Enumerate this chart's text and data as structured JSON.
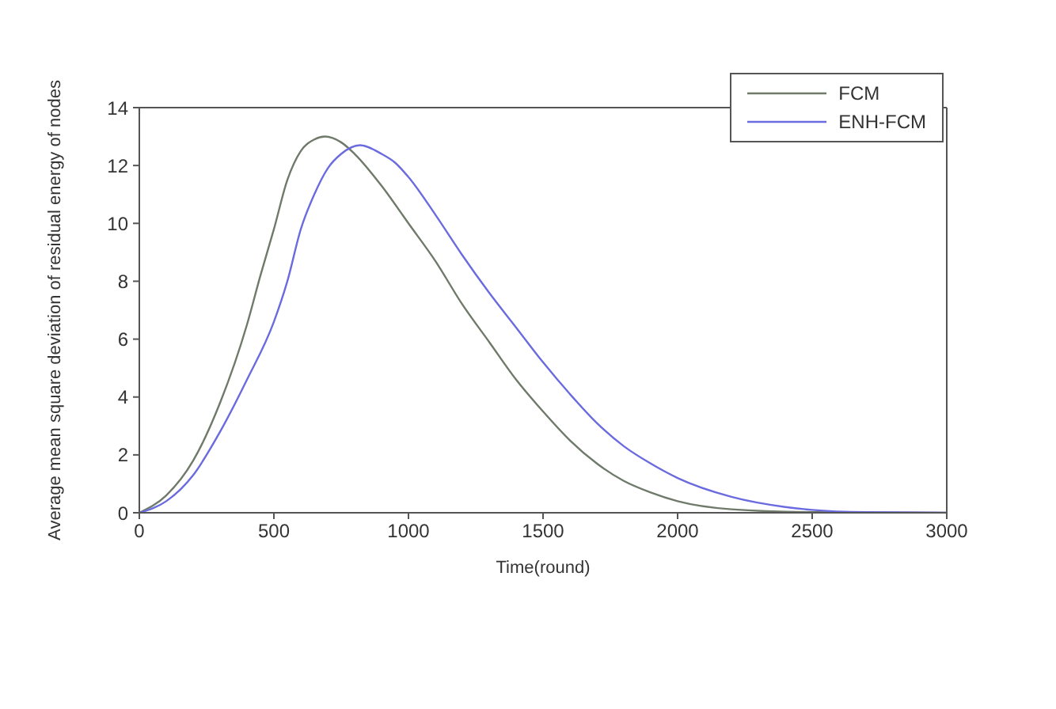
{
  "chart_data": {
    "type": "line",
    "xlabel": "Time(round)",
    "ylabel": "Average mean square deviation of residual energy of nodes",
    "xlim": [
      0,
      3000
    ],
    "xticks": [
      0,
      500,
      1000,
      1500,
      2000,
      2500,
      3000
    ],
    "ylim": [
      0,
      14
    ],
    "yticks": [
      0,
      2,
      4,
      6,
      8,
      10,
      12,
      14
    ],
    "grid": false,
    "legend": "top right",
    "marker": "none",
    "line_style": "solid",
    "series": [
      {
        "name": "FCM",
        "color": "#6f7a6a",
        "x": [
          0,
          100,
          200,
          300,
          400,
          450,
          500,
          550,
          600,
          650,
          690,
          750,
          800,
          900,
          1000,
          1100,
          1200,
          1300,
          1400,
          1500,
          1600,
          1700,
          1800,
          1900,
          2000,
          2200,
          2500,
          3000
        ],
        "values": [
          0,
          0.6,
          1.8,
          3.8,
          6.5,
          8.2,
          9.8,
          11.5,
          12.5,
          12.9,
          13.0,
          12.8,
          12.4,
          11.3,
          10,
          8.7,
          7.2,
          5.9,
          4.6,
          3.5,
          2.5,
          1.7,
          1.1,
          0.7,
          0.4,
          0.12,
          0.02,
          0
        ]
      },
      {
        "name": "ENH-FCM",
        "color": "#6b6be0",
        "x": [
          0,
          100,
          200,
          300,
          400,
          500,
          550,
          600,
          650,
          700,
          750,
          820,
          900,
          950,
          1000,
          1100,
          1200,
          1300,
          1400,
          1500,
          1600,
          1700,
          1800,
          1900,
          2000,
          2200,
          2400,
          2500,
          2700,
          3000
        ],
        "values": [
          0,
          0.4,
          1.3,
          2.8,
          4.6,
          6.6,
          8,
          9.8,
          11,
          11.9,
          12.4,
          12.7,
          12.4,
          12.1,
          11.6,
          10.3,
          8.9,
          7.6,
          6.4,
          5.2,
          4.1,
          3.1,
          2.3,
          1.7,
          1.2,
          0.55,
          0.2,
          0.1,
          0.02,
          0
        ]
      }
    ]
  }
}
